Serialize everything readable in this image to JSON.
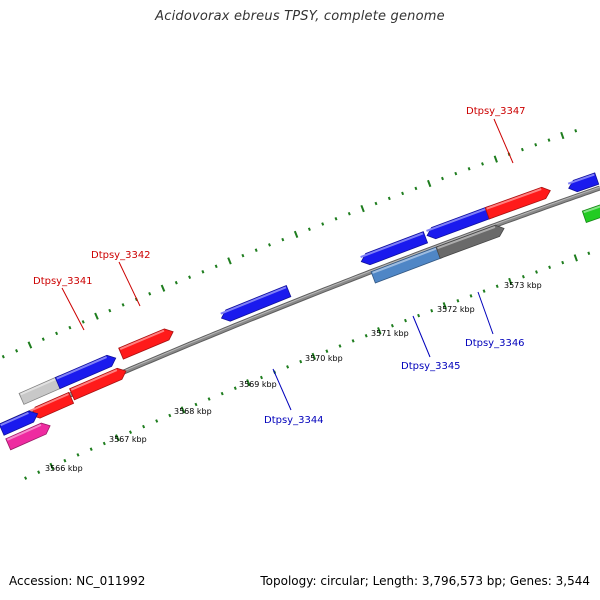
{
  "title": "Acidovorax ebreus TPSY, complete genome",
  "footer": {
    "accession": "Accession: NC_011992",
    "topology": "Topology: circular; Length: 3,796,573 bp; Genes: 3,544"
  },
  "colors": {
    "backbone": "#8a8a8a",
    "tick": "#1e7d1e",
    "label_forward": "#cc0000",
    "label_reverse": "#0000bb",
    "gene_red": "#ff1a1a",
    "gene_blue": "#1a1aee",
    "gene_gray_light": "#c8c8c8",
    "gene_steel": "#4f86c6",
    "gene_gray_dark": "#6a6a6a",
    "gene_green": "#22cc22",
    "gene_magenta": "#ee2ba0"
  },
  "scale_labels": [
    "3566 kbp",
    "3567 kbp",
    "3568 kbp",
    "3569 kbp",
    "3570 kbp",
    "3571 kbp",
    "3572 kbp",
    "3573 kbp"
  ],
  "gene_labels": {
    "forward": [
      "Dtpsy_3341",
      "Dtpsy_3342",
      "Dtpsy_3347"
    ],
    "reverse": [
      "Dtpsy_3344",
      "Dtpsy_3345",
      "Dtpsy_3346"
    ]
  }
}
